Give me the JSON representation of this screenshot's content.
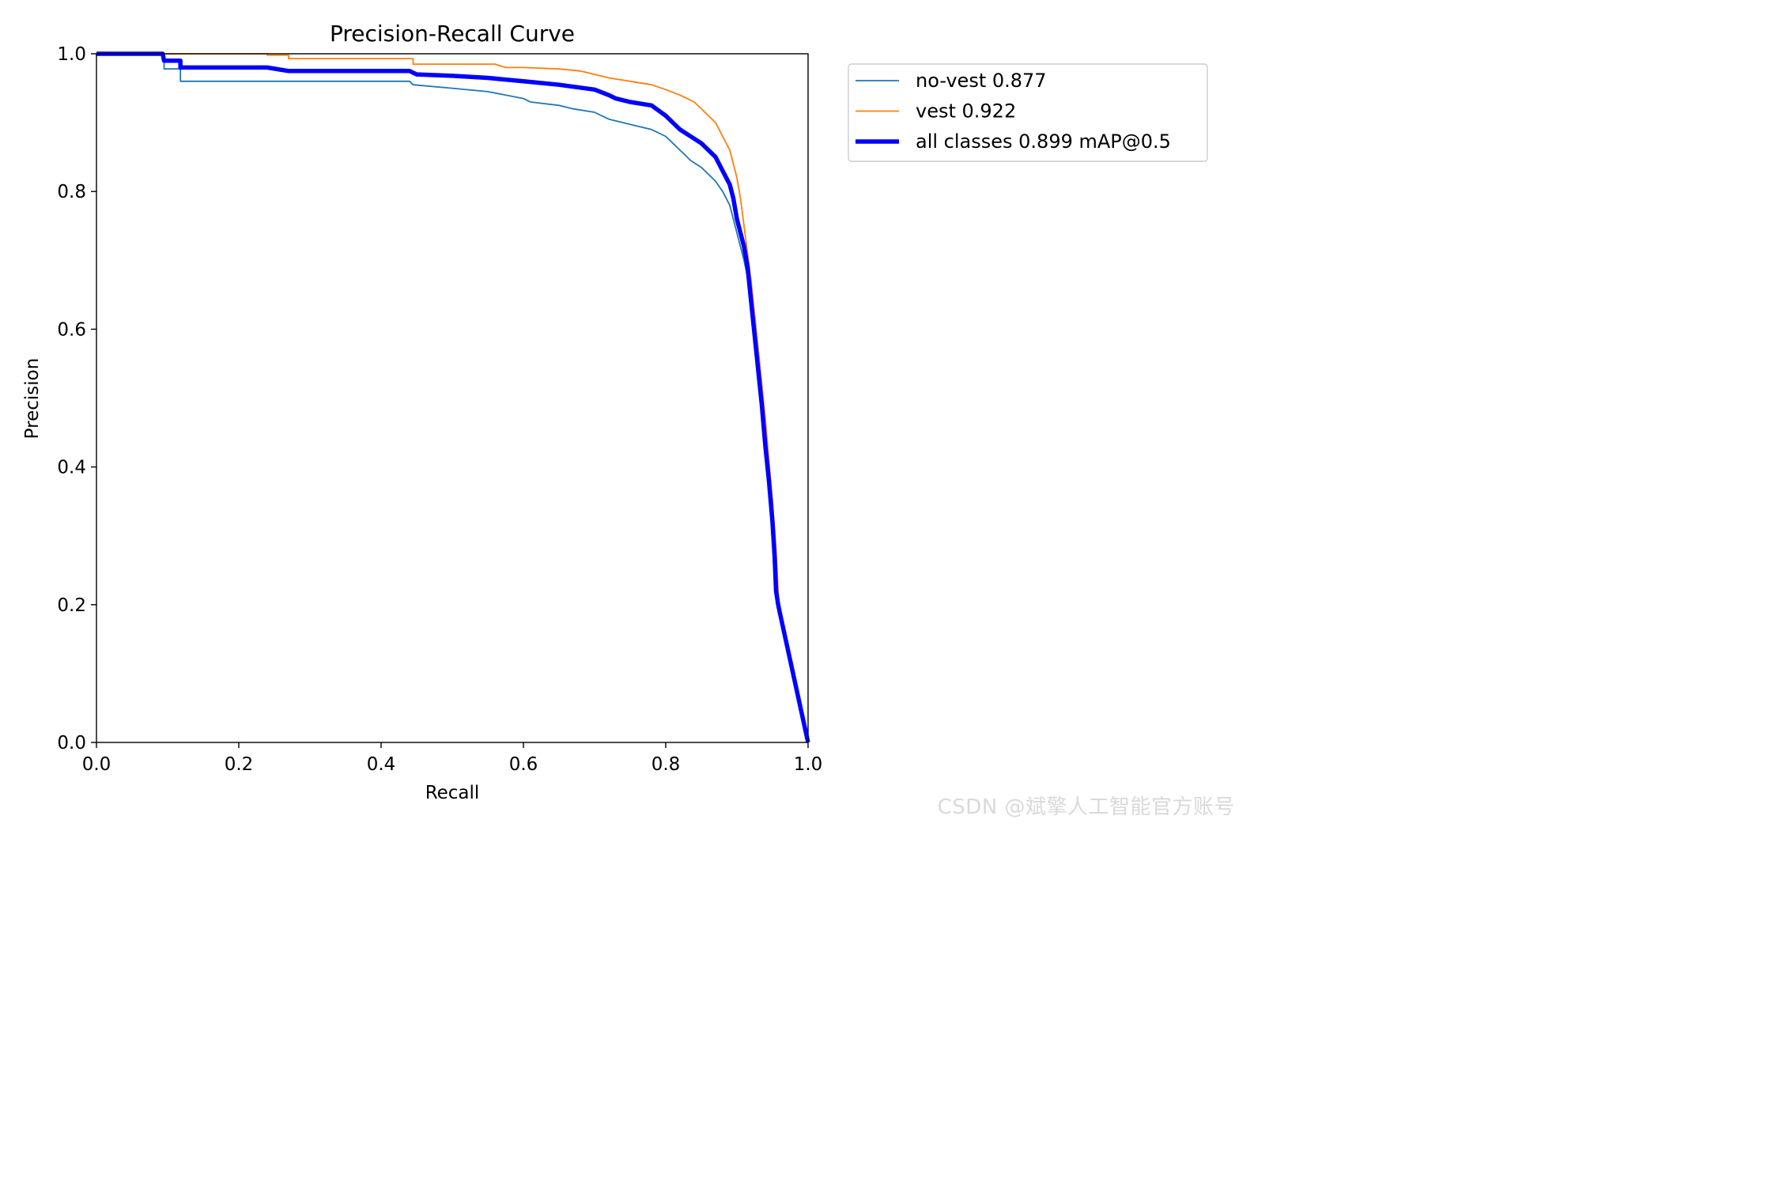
{
  "chart_data": {
    "type": "line",
    "title": "Precision-Recall Curve",
    "xlabel": "Recall",
    "ylabel": "Precision",
    "xlim": [
      0,
      1
    ],
    "ylim": [
      0,
      1
    ],
    "xticks": [
      "0.0",
      "0.2",
      "0.4",
      "0.6",
      "0.8",
      "1.0"
    ],
    "yticks": [
      "0.0",
      "0.2",
      "0.4",
      "0.6",
      "0.8",
      "1.0"
    ],
    "grid": false,
    "legend_position": "outside top-right",
    "series": [
      {
        "name": "no-vest 0.877",
        "color": "#1f77b4",
        "line_style": "thin",
        "x": [
          0,
          0.093,
          0.095,
          0.095,
          0.118,
          0.118,
          0.44,
          0.445,
          0.5,
          0.55,
          0.6,
          0.61,
          0.65,
          0.67,
          0.7,
          0.72,
          0.74,
          0.76,
          0.78,
          0.8,
          0.81,
          0.82,
          0.835,
          0.85,
          0.86,
          0.87,
          0.88,
          0.89,
          0.895,
          0.9,
          0.905,
          0.91,
          0.915,
          0.92,
          0.925,
          0.93,
          0.935,
          0.94,
          0.945,
          0.95,
          0.953,
          0.955,
          0.958,
          0.96,
          1.0
        ],
        "y": [
          1.0,
          1.0,
          0.99,
          0.978,
          0.978,
          0.96,
          0.96,
          0.955,
          0.95,
          0.945,
          0.935,
          0.93,
          0.925,
          0.92,
          0.915,
          0.905,
          0.9,
          0.895,
          0.89,
          0.88,
          0.87,
          0.86,
          0.845,
          0.835,
          0.825,
          0.815,
          0.8,
          0.78,
          0.76,
          0.74,
          0.72,
          0.7,
          0.675,
          0.65,
          0.62,
          0.57,
          0.52,
          0.46,
          0.4,
          0.35,
          0.3,
          0.25,
          0.2,
          0.19,
          0.0
        ]
      },
      {
        "name": "vest 0.922",
        "color": "#ff7f0e",
        "line_style": "thin",
        "x": [
          0,
          0.24,
          0.24,
          0.27,
          0.27,
          0.445,
          0.445,
          0.56,
          0.575,
          0.6,
          0.65,
          0.68,
          0.7,
          0.72,
          0.75,
          0.78,
          0.8,
          0.82,
          0.84,
          0.855,
          0.87,
          0.88,
          0.89,
          0.9,
          0.905,
          0.91,
          0.915,
          0.92,
          0.925,
          0.93,
          0.935,
          0.94,
          0.945,
          0.95,
          0.955,
          0.958,
          0.96,
          1.0
        ],
        "y": [
          1.0,
          1.0,
          0.998,
          0.998,
          0.993,
          0.993,
          0.985,
          0.985,
          0.98,
          0.98,
          0.978,
          0.975,
          0.97,
          0.965,
          0.96,
          0.955,
          0.948,
          0.94,
          0.93,
          0.915,
          0.9,
          0.88,
          0.86,
          0.82,
          0.79,
          0.75,
          0.71,
          0.67,
          0.62,
          0.57,
          0.52,
          0.47,
          0.41,
          0.35,
          0.28,
          0.22,
          0.19,
          0.0
        ]
      },
      {
        "name": "all classes 0.899 mAP@0.5",
        "color": "#0000ff",
        "line_style": "thick",
        "x": [
          0,
          0.093,
          0.095,
          0.118,
          0.118,
          0.24,
          0.27,
          0.44,
          0.45,
          0.5,
          0.55,
          0.6,
          0.65,
          0.7,
          0.72,
          0.73,
          0.75,
          0.78,
          0.8,
          0.82,
          0.835,
          0.85,
          0.86,
          0.87,
          0.88,
          0.89,
          0.895,
          0.9,
          0.905,
          0.91,
          0.915,
          0.92,
          0.925,
          0.93,
          0.935,
          0.94,
          0.945,
          0.95,
          0.953,
          0.955,
          0.958,
          0.96,
          1.0
        ],
        "y": [
          1.0,
          1.0,
          0.99,
          0.99,
          0.98,
          0.98,
          0.975,
          0.975,
          0.97,
          0.968,
          0.965,
          0.96,
          0.955,
          0.948,
          0.94,
          0.935,
          0.93,
          0.925,
          0.91,
          0.89,
          0.88,
          0.87,
          0.86,
          0.85,
          0.83,
          0.81,
          0.79,
          0.76,
          0.74,
          0.72,
          0.69,
          0.64,
          0.59,
          0.54,
          0.49,
          0.43,
          0.38,
          0.32,
          0.27,
          0.22,
          0.2,
          0.19,
          0.0
        ]
      }
    ]
  },
  "watermark": "CSDN @斌擎人工智能官方账号"
}
